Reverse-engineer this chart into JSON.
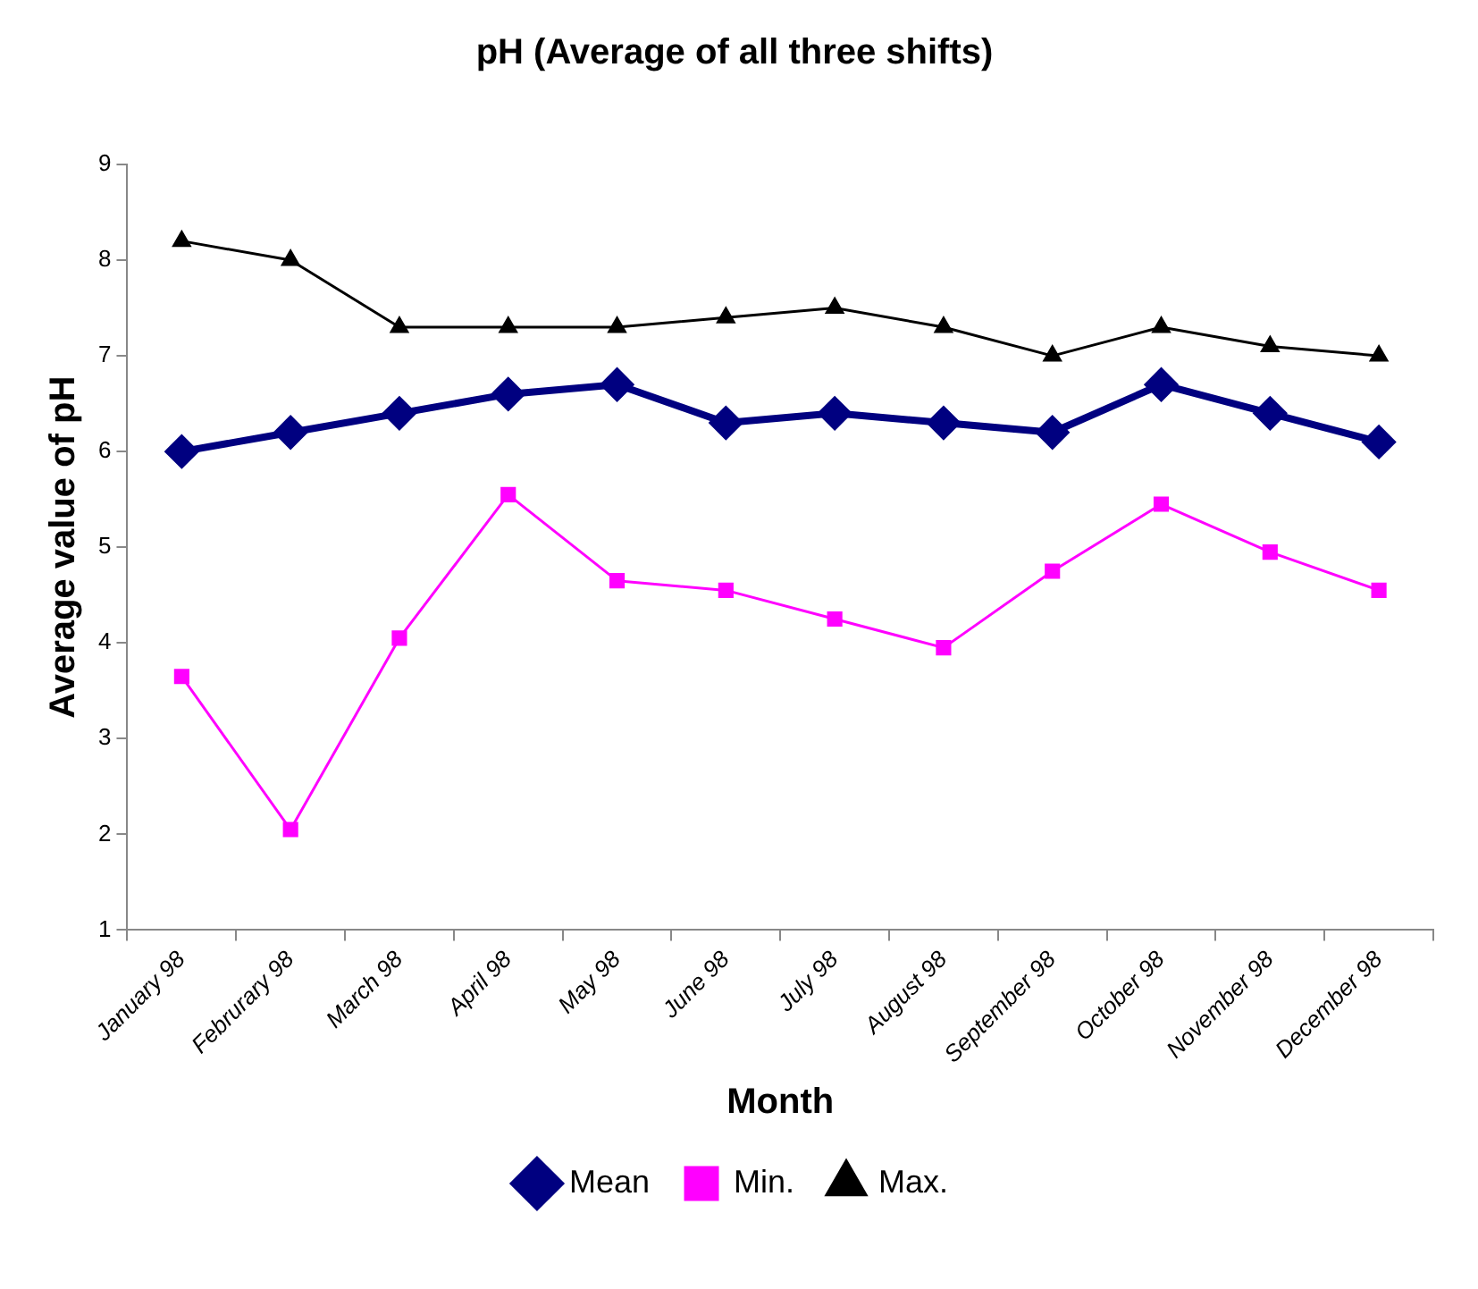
{
  "chart_data": {
    "type": "line",
    "title": "pH (Average of all three shifts)",
    "xlabel": "Month",
    "ylabel": "Average value of pH",
    "categories": [
      "January 98",
      "Februrary 98",
      "March 98",
      "April 98",
      "May 98",
      "June 98",
      "July 98",
      "August 98",
      "September 98",
      "October 98",
      "November 98",
      "December 98"
    ],
    "series": [
      {
        "name": "Mean",
        "color": "#000080",
        "marker": "diamond",
        "values": [
          6.0,
          6.2,
          6.4,
          6.6,
          6.7,
          6.3,
          6.4,
          6.3,
          6.2,
          6.7,
          6.4,
          6.1
        ]
      },
      {
        "name": "Min.",
        "color": "#ff00ff",
        "marker": "square",
        "values": [
          3.65,
          2.05,
          4.05,
          5.55,
          4.65,
          4.55,
          4.25,
          3.95,
          4.75,
          5.45,
          4.95,
          4.55
        ]
      },
      {
        "name": "Max.",
        "color": "#000000",
        "marker": "triangle",
        "values": [
          8.2,
          8.0,
          7.3,
          7.3,
          7.3,
          7.4,
          7.5,
          7.3,
          7.0,
          7.3,
          7.1,
          7.0
        ]
      }
    ],
    "ylim": [
      1,
      9
    ],
    "yticks": [
      1,
      2,
      3,
      4,
      5,
      6,
      7,
      8,
      9
    ],
    "grid": false,
    "legend": "bottom",
    "line_style": "solid"
  }
}
